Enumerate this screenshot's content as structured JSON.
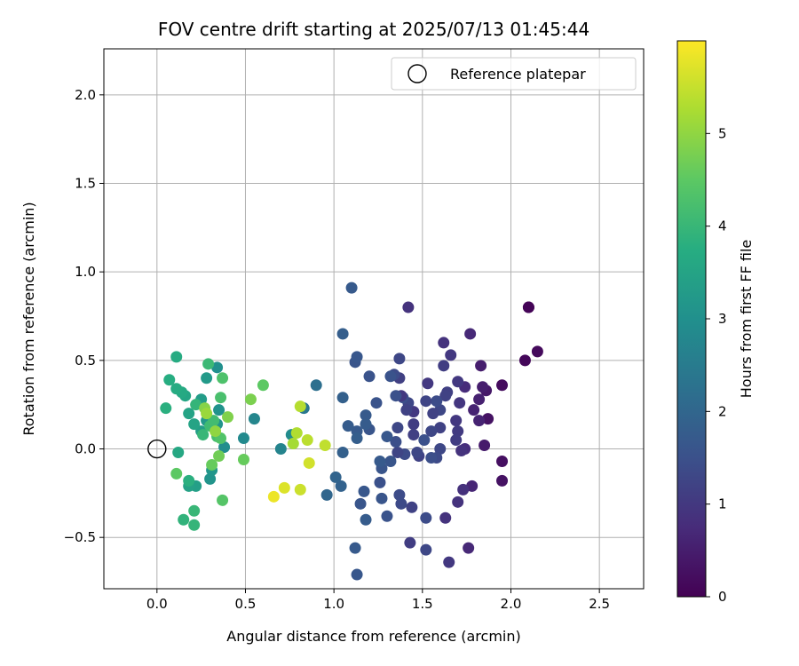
{
  "chart_data": {
    "type": "scatter",
    "title": "FOV centre drift starting at 2025/07/13 01:45:44",
    "xlabel": "Angular distance from reference (arcmin)",
    "ylabel": "Rotation from reference (arcmin)",
    "xlim": [
      -0.3,
      2.75
    ],
    "ylim": [
      -0.79,
      2.26
    ],
    "xticks": [
      0.0,
      0.5,
      1.0,
      1.5,
      2.0,
      2.5
    ],
    "xtick_labels": [
      "0.0",
      "0.5",
      "1.0",
      "1.5",
      "2.0",
      "2.5"
    ],
    "yticks": [
      -0.5,
      0.0,
      0.5,
      1.0,
      1.5,
      2.0
    ],
    "ytick_labels": [
      "−0.5",
      "0.0",
      "0.5",
      "1.0",
      "1.5",
      "2.0"
    ],
    "grid": true,
    "colormap": "viridis",
    "colorbar": {
      "label": "Hours from first FF file",
      "range": [
        0,
        6.0
      ],
      "ticks": [
        0,
        1,
        2,
        3,
        4,
        5
      ],
      "tick_labels": [
        "0",
        "1",
        "2",
        "3",
        "4",
        "5"
      ]
    },
    "legend": {
      "position": "upper-right",
      "entries": [
        {
          "label": "Reference platepar",
          "marker": "open-circle"
        }
      ]
    },
    "reference_point": {
      "x": 0.0,
      "y": 0.0
    },
    "points": [
      {
        "x": 2.1,
        "y": 0.8,
        "t": 0.0
      },
      {
        "x": 2.1,
        "y": 0.8,
        "t": 0.05
      },
      {
        "x": 2.08,
        "y": 0.5,
        "t": 0.1
      },
      {
        "x": 2.15,
        "y": 0.55,
        "t": 0.15
      },
      {
        "x": 1.95,
        "y": 0.36,
        "t": 0.2
      },
      {
        "x": 1.95,
        "y": -0.07,
        "t": 0.25
      },
      {
        "x": 1.95,
        "y": -0.18,
        "t": 0.3
      },
      {
        "x": 1.87,
        "y": 0.17,
        "t": 0.3
      },
      {
        "x": 1.86,
        "y": 0.33,
        "t": 0.4
      },
      {
        "x": 1.85,
        "y": 0.02,
        "t": 0.45
      },
      {
        "x": 1.84,
        "y": 0.35,
        "t": 0.5
      },
      {
        "x": 1.83,
        "y": 0.47,
        "t": 0.5
      },
      {
        "x": 1.82,
        "y": 0.28,
        "t": 0.55
      },
      {
        "x": 1.82,
        "y": 0.16,
        "t": 0.6
      },
      {
        "x": 1.79,
        "y": 0.22,
        "t": 0.6
      },
      {
        "x": 1.77,
        "y": 0.65,
        "t": 0.7
      },
      {
        "x": 1.78,
        "y": -0.21,
        "t": 0.65
      },
      {
        "x": 1.76,
        "y": -0.56,
        "t": 0.7
      },
      {
        "x": 1.74,
        "y": 0.35,
        "t": 0.75
      },
      {
        "x": 1.74,
        "y": 0.0,
        "t": 0.8
      },
      {
        "x": 1.73,
        "y": -0.23,
        "t": 0.85
      },
      {
        "x": 1.72,
        "y": -0.01,
        "t": 0.9
      },
      {
        "x": 1.7,
        "y": -0.3,
        "t": 0.9
      },
      {
        "x": 1.71,
        "y": 0.26,
        "t": 0.95
      },
      {
        "x": 1.7,
        "y": 0.38,
        "t": 1.0
      },
      {
        "x": 1.69,
        "y": 0.16,
        "t": 1.0
      },
      {
        "x": 1.7,
        "y": 0.1,
        "t": 1.05
      },
      {
        "x": 1.69,
        "y": 0.05,
        "t": 1.1
      },
      {
        "x": 1.66,
        "y": 0.53,
        "t": 1.0
      },
      {
        "x": 1.65,
        "y": -0.64,
        "t": 1.0
      },
      {
        "x": 1.64,
        "y": 0.32,
        "t": 1.15
      },
      {
        "x": 1.63,
        "y": -0.39,
        "t": 0.9
      },
      {
        "x": 1.62,
        "y": 0.6,
        "t": 0.9
      },
      {
        "x": 1.62,
        "y": 0.47,
        "t": 1.1
      },
      {
        "x": 1.63,
        "y": 0.3,
        "t": 1.2
      },
      {
        "x": 1.6,
        "y": 0.22,
        "t": 1.3
      },
      {
        "x": 1.6,
        "y": 0.12,
        "t": 1.2
      },
      {
        "x": 1.6,
        "y": 0.0,
        "t": 1.3
      },
      {
        "x": 1.58,
        "y": -0.05,
        "t": 1.35
      },
      {
        "x": 1.58,
        "y": 0.27,
        "t": 1.4
      },
      {
        "x": 1.56,
        "y": 0.2,
        "t": 1.2
      },
      {
        "x": 1.55,
        "y": 0.1,
        "t": 1.3
      },
      {
        "x": 1.55,
        "y": -0.05,
        "t": 1.45
      },
      {
        "x": 1.53,
        "y": 0.37,
        "t": 1.0
      },
      {
        "x": 1.52,
        "y": 0.27,
        "t": 1.25
      },
      {
        "x": 1.52,
        "y": -0.57,
        "t": 1.3
      },
      {
        "x": 1.52,
        "y": -0.39,
        "t": 1.4
      },
      {
        "x": 1.51,
        "y": 0.05,
        "t": 1.5
      },
      {
        "x": 1.48,
        "y": -0.04,
        "t": 1.2
      },
      {
        "x": 1.47,
        "y": -0.02,
        "t": 1.3
      },
      {
        "x": 1.45,
        "y": 0.21,
        "t": 1.0
      },
      {
        "x": 1.45,
        "y": 0.14,
        "t": 1.1
      },
      {
        "x": 1.45,
        "y": 0.08,
        "t": 1.15
      },
      {
        "x": 1.44,
        "y": -0.33,
        "t": 1.2
      },
      {
        "x": 1.43,
        "y": -0.53,
        "t": 1.1
      },
      {
        "x": 1.42,
        "y": 0.8,
        "t": 0.9
      },
      {
        "x": 1.42,
        "y": 0.26,
        "t": 1.3
      },
      {
        "x": 1.41,
        "y": 0.22,
        "t": 1.2
      },
      {
        "x": 1.4,
        "y": -0.03,
        "t": 1.4
      },
      {
        "x": 1.39,
        "y": 0.29,
        "t": 1.45
      },
      {
        "x": 1.38,
        "y": 0.3,
        "t": 1.0
      },
      {
        "x": 1.38,
        "y": -0.31,
        "t": 1.35
      },
      {
        "x": 1.37,
        "y": 0.4,
        "t": 1.15
      },
      {
        "x": 1.37,
        "y": 0.51,
        "t": 1.3
      },
      {
        "x": 1.36,
        "y": 0.12,
        "t": 1.3
      },
      {
        "x": 1.36,
        "y": -0.02,
        "t": 1.25
      },
      {
        "x": 1.37,
        "y": -0.26,
        "t": 1.4
      },
      {
        "x": 1.35,
        "y": 0.04,
        "t": 1.45
      },
      {
        "x": 1.35,
        "y": 0.3,
        "t": 1.5
      },
      {
        "x": 1.34,
        "y": 0.42,
        "t": 1.4
      },
      {
        "x": 1.32,
        "y": 0.41,
        "t": 1.55
      },
      {
        "x": 1.32,
        "y": -0.07,
        "t": 1.6
      },
      {
        "x": 1.3,
        "y": -0.38,
        "t": 1.55
      },
      {
        "x": 1.3,
        "y": 0.07,
        "t": 1.65
      },
      {
        "x": 1.27,
        "y": -0.11,
        "t": 1.6
      },
      {
        "x": 1.26,
        "y": -0.07,
        "t": 1.7
      },
      {
        "x": 1.27,
        "y": -0.28,
        "t": 1.6
      },
      {
        "x": 1.26,
        "y": -0.19,
        "t": 1.5
      },
      {
        "x": 1.24,
        "y": 0.26,
        "t": 1.55
      },
      {
        "x": 1.2,
        "y": 0.41,
        "t": 1.55
      },
      {
        "x": 1.2,
        "y": 0.11,
        "t": 1.6
      },
      {
        "x": 1.18,
        "y": 0.19,
        "t": 1.7
      },
      {
        "x": 1.18,
        "y": 0.14,
        "t": 1.75
      },
      {
        "x": 1.18,
        "y": -0.4,
        "t": 1.75
      },
      {
        "x": 1.17,
        "y": -0.24,
        "t": 1.65
      },
      {
        "x": 1.15,
        "y": -0.31,
        "t": 1.6
      },
      {
        "x": 1.13,
        "y": 0.1,
        "t": 1.7
      },
      {
        "x": 1.13,
        "y": 0.06,
        "t": 1.8
      },
      {
        "x": 1.13,
        "y": -0.71,
        "t": 1.65
      },
      {
        "x": 1.12,
        "y": 0.49,
        "t": 1.6
      },
      {
        "x": 1.13,
        "y": 0.52,
        "t": 1.65
      },
      {
        "x": 1.12,
        "y": -0.56,
        "t": 1.7
      },
      {
        "x": 1.1,
        "y": 0.91,
        "t": 1.7
      },
      {
        "x": 1.08,
        "y": 0.13,
        "t": 1.75
      },
      {
        "x": 1.05,
        "y": 0.65,
        "t": 1.8
      },
      {
        "x": 1.05,
        "y": 0.29,
        "t": 1.85
      },
      {
        "x": 1.05,
        "y": -0.02,
        "t": 1.85
      },
      {
        "x": 1.04,
        "y": -0.21,
        "t": 1.9
      },
      {
        "x": 1.01,
        "y": -0.16,
        "t": 1.95
      },
      {
        "x": 0.96,
        "y": -0.26,
        "t": 2.0
      },
      {
        "x": 0.9,
        "y": 0.36,
        "t": 2.2
      },
      {
        "x": 0.83,
        "y": 0.23,
        "t": 2.4
      },
      {
        "x": 0.76,
        "y": 0.08,
        "t": 2.9
      },
      {
        "x": 0.7,
        "y": 0.0,
        "t": 2.7
      },
      {
        "x": 0.55,
        "y": 0.17,
        "t": 2.75
      },
      {
        "x": 0.49,
        "y": 0.06,
        "t": 2.85
      },
      {
        "x": 0.38,
        "y": 0.01,
        "t": 2.95
      },
      {
        "x": 0.34,
        "y": 0.46,
        "t": 3.0
      },
      {
        "x": 0.35,
        "y": 0.22,
        "t": 3.05
      },
      {
        "x": 0.34,
        "y": 0.14,
        "t": 3.1
      },
      {
        "x": 0.3,
        "y": -0.17,
        "t": 3.1
      },
      {
        "x": 0.31,
        "y": -0.12,
        "t": 3.15
      },
      {
        "x": 0.28,
        "y": 0.16,
        "t": 3.2
      },
      {
        "x": 0.28,
        "y": 0.4,
        "t": 3.25
      },
      {
        "x": 0.25,
        "y": 0.28,
        "t": 3.3
      },
      {
        "x": 0.25,
        "y": 0.1,
        "t": 3.35
      },
      {
        "x": 0.22,
        "y": -0.21,
        "t": 3.4
      },
      {
        "x": 0.18,
        "y": -0.21,
        "t": 3.45
      },
      {
        "x": 0.21,
        "y": 0.14,
        "t": 3.5
      },
      {
        "x": 0.18,
        "y": 0.2,
        "t": 3.5
      },
      {
        "x": 0.16,
        "y": 0.3,
        "t": 3.55
      },
      {
        "x": 0.12,
        "y": -0.02,
        "t": 3.6
      },
      {
        "x": 0.14,
        "y": 0.32,
        "t": 3.65
      },
      {
        "x": 0.11,
        "y": 0.34,
        "t": 3.7
      },
      {
        "x": 0.11,
        "y": 0.52,
        "t": 3.7
      },
      {
        "x": 0.07,
        "y": 0.39,
        "t": 3.75
      },
      {
        "x": 0.05,
        "y": 0.23,
        "t": 3.8
      },
      {
        "x": 0.18,
        "y": -0.18,
        "t": 3.8
      },
      {
        "x": 0.15,
        "y": -0.4,
        "t": 3.9
      },
      {
        "x": 0.21,
        "y": -0.43,
        "t": 3.95
      },
      {
        "x": 0.21,
        "y": -0.35,
        "t": 4.0
      },
      {
        "x": 0.22,
        "y": 0.25,
        "t": 3.95
      },
      {
        "x": 0.26,
        "y": 0.08,
        "t": 4.0
      },
      {
        "x": 0.29,
        "y": 0.48,
        "t": 4.05
      },
      {
        "x": 0.3,
        "y": 0.13,
        "t": 4.1
      },
      {
        "x": 0.32,
        "y": 0.16,
        "t": 4.15
      },
      {
        "x": 0.34,
        "y": 0.07,
        "t": 4.2
      },
      {
        "x": 0.36,
        "y": 0.29,
        "t": 4.25
      },
      {
        "x": 0.37,
        "y": 0.4,
        "t": 4.3
      },
      {
        "x": 0.36,
        "y": 0.06,
        "t": 4.35
      },
      {
        "x": 0.37,
        "y": -0.29,
        "t": 4.4
      },
      {
        "x": 0.11,
        "y": -0.14,
        "t": 4.5
      },
      {
        "x": 0.31,
        "y": -0.09,
        "t": 4.6
      },
      {
        "x": 0.35,
        "y": -0.04,
        "t": 4.7
      },
      {
        "x": 0.49,
        "y": -0.06,
        "t": 4.6
      },
      {
        "x": 0.6,
        "y": 0.36,
        "t": 4.5
      },
      {
        "x": 0.53,
        "y": 0.28,
        "t": 4.8
      },
      {
        "x": 0.4,
        "y": 0.18,
        "t": 4.85
      },
      {
        "x": 0.27,
        "y": 0.23,
        "t": 4.9
      },
      {
        "x": 0.33,
        "y": 0.1,
        "t": 5.0
      },
      {
        "x": 0.28,
        "y": 0.2,
        "t": 5.1
      },
      {
        "x": 0.77,
        "y": 0.03,
        "t": 5.2
      },
      {
        "x": 0.79,
        "y": 0.09,
        "t": 5.3
      },
      {
        "x": 0.81,
        "y": 0.24,
        "t": 5.35
      },
      {
        "x": 0.85,
        "y": 0.05,
        "t": 5.4
      },
      {
        "x": 0.95,
        "y": 0.02,
        "t": 5.45
      },
      {
        "x": 0.86,
        "y": -0.08,
        "t": 5.6
      },
      {
        "x": 0.81,
        "y": -0.23,
        "t": 5.55
      },
      {
        "x": 0.72,
        "y": -0.22,
        "t": 5.7
      },
      {
        "x": 0.66,
        "y": -0.27,
        "t": 5.85
      }
    ]
  }
}
